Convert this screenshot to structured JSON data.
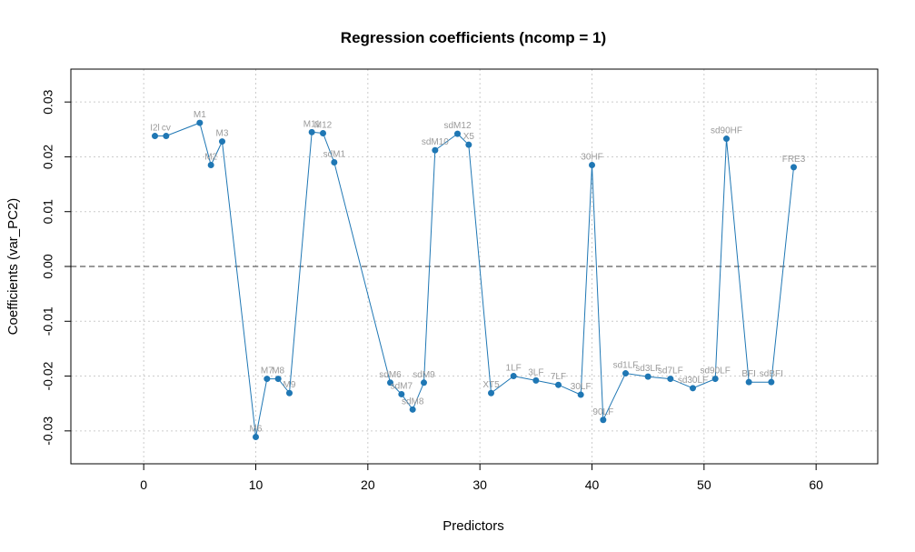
{
  "chart_data": {
    "type": "line",
    "title": "Regression coefficients (ncomp = 1)",
    "xlabel": "Predictors",
    "ylabel": "Coefficients (var_PC2)",
    "xlim": [
      -6.5,
      65.5
    ],
    "ylim": [
      -0.036,
      0.036
    ],
    "x_ticks": [
      0,
      10,
      20,
      30,
      40,
      50,
      60
    ],
    "x_tick_labels": [
      "0",
      "10",
      "20",
      "30",
      "40",
      "50",
      "60"
    ],
    "y_ticks": [
      -0.03,
      -0.02,
      -0.01,
      0.0,
      0.01,
      0.02,
      0.03
    ],
    "y_tick_labels": [
      "-0.03",
      "-0.02",
      "-0.01",
      "0.00",
      "0.01",
      "0.02",
      "0.03"
    ],
    "grid": true,
    "reference_line": 0.0,
    "colors": {
      "line": "#1f77b4",
      "point": "#1f77b4",
      "label": "#9a9a9a",
      "grid": "#cccccc"
    },
    "points": [
      {
        "x": 1,
        "y": 0.0238,
        "label": "I2l"
      },
      {
        "x": 2,
        "y": 0.0238,
        "label": "cv"
      },
      {
        "x": 5,
        "y": 0.0262,
        "label": "M1"
      },
      {
        "x": 6,
        "y": 0.0185,
        "label": "M2"
      },
      {
        "x": 7,
        "y": 0.0228,
        "label": "M3"
      },
      {
        "x": 10,
        "y": -0.0311,
        "label": "M6"
      },
      {
        "x": 11,
        "y": -0.0205,
        "label": "M7"
      },
      {
        "x": 12,
        "y": -0.0205,
        "label": "M8"
      },
      {
        "x": 13,
        "y": -0.0231,
        "label": "M9"
      },
      {
        "x": 15,
        "y": 0.0245,
        "label": "M11"
      },
      {
        "x": 16,
        "y": 0.0243,
        "label": "M12"
      },
      {
        "x": 17,
        "y": 0.019,
        "label": "sdM1"
      },
      {
        "x": 22,
        "y": -0.0212,
        "label": "sdM6"
      },
      {
        "x": 23,
        "y": -0.0233,
        "label": "sdM7"
      },
      {
        "x": 24,
        "y": -0.0261,
        "label": "sdM8"
      },
      {
        "x": 25,
        "y": -0.0212,
        "label": "sdM9"
      },
      {
        "x": 26,
        "y": 0.0212,
        "label": "sdM10"
      },
      {
        "x": 28,
        "y": 0.0242,
        "label": "sdM12"
      },
      {
        "x": 29,
        "y": 0.0222,
        "label": "X5"
      },
      {
        "x": 31,
        "y": -0.0231,
        "label": "XT5"
      },
      {
        "x": 33,
        "y": -0.02,
        "label": "1LF"
      },
      {
        "x": 35,
        "y": -0.0208,
        "label": "3LF"
      },
      {
        "x": 37,
        "y": -0.0216,
        "label": "7LF"
      },
      {
        "x": 39,
        "y": -0.0234,
        "label": "30LF"
      },
      {
        "x": 40,
        "y": 0.0185,
        "label": "30HF"
      },
      {
        "x": 41,
        "y": -0.028,
        "label": "90LF"
      },
      {
        "x": 43,
        "y": -0.0195,
        "label": "sd1LF"
      },
      {
        "x": 45,
        "y": -0.0201,
        "label": "sd3LF"
      },
      {
        "x": 47,
        "y": -0.0205,
        "label": "sd7LF"
      },
      {
        "x": 49,
        "y": -0.0222,
        "label": "sd30LF"
      },
      {
        "x": 51,
        "y": -0.0205,
        "label": "sd90LF"
      },
      {
        "x": 52,
        "y": 0.0233,
        "label": "sd90HF"
      },
      {
        "x": 54,
        "y": -0.0211,
        "label": "BFI"
      },
      {
        "x": 56,
        "y": -0.0211,
        "label": "sdBFI"
      },
      {
        "x": 58,
        "y": 0.0181,
        "label": "FRE3"
      }
    ]
  }
}
